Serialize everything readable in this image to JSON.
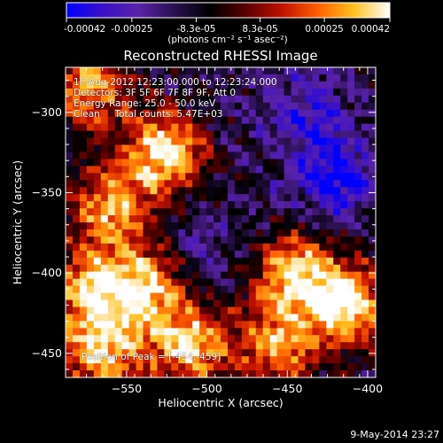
{
  "chart_data": {
    "type": "heatmap",
    "title": "Reconstructed RHESSI Image",
    "xlabel": "Heliocentric X (arcsec)",
    "ylabel": "Heliocentric Y (arcsec)",
    "xlim": [
      -588,
      -395
    ],
    "ylim": [
      -465,
      -272
    ],
    "x_ticks": [
      -550,
      -500,
      -450,
      -400
    ],
    "y_ticks": [
      -300,
      -350,
      -400,
      -450
    ],
    "colorbar": {
      "min": -0.00042,
      "max": 0.00042,
      "tick_values": [
        -0.00042,
        -0.00025,
        -8.3e-05,
        8.3e-05,
        0.00025,
        0.00042
      ],
      "tick_labels": [
        "-0.00042",
        "-0.00025",
        "-8.3e-05",
        "8.3e-05",
        "0.00025",
        "0.00042"
      ],
      "units_label": "(photons cm⁻² s⁻¹ asec⁻²)",
      "colormap": [
        "#0000ff",
        "#3a10c8",
        "#5a22a8",
        "#2a1050",
        "#000000",
        "#5a0000",
        "#c01000",
        "#ff6000",
        "#ffc020",
        "#ffffff"
      ]
    },
    "peak_position": [
      -454,
      -459
    ],
    "bright_regions": [
      {
        "x": -527,
        "y": -325,
        "intensity": 0.00042
      },
      {
        "x": -560,
        "y": -360,
        "intensity": 0.0003
      },
      {
        "x": -540,
        "y": -410,
        "intensity": 0.00035
      },
      {
        "x": -575,
        "y": -410,
        "intensity": 0.0003
      },
      {
        "x": -510,
        "y": -445,
        "intensity": 0.00035
      },
      {
        "x": -565,
        "y": -450,
        "intensity": 0.00035
      },
      {
        "x": -445,
        "y": -400,
        "intensity": 0.00035
      },
      {
        "x": -412,
        "y": -420,
        "intensity": 0.00042
      },
      {
        "x": -455,
        "y": -445,
        "intensity": 0.0003
      },
      {
        "x": -575,
        "y": -285,
        "intensity": 0.0003
      }
    ],
    "dark_regions": [
      {
        "x": -420,
        "y": -340,
        "intensity": -0.00042
      },
      {
        "x": -440,
        "y": -300,
        "intensity": -0.0003
      },
      {
        "x": -500,
        "y": -380,
        "intensity": -0.0002
      }
    ]
  },
  "annotation": {
    "time_range": "10-Aug-2012 12:23:00.000 to 12:23:24.000",
    "detectors": "Detectors: 3F 5F 6F 7F 8F 9F, Att 0",
    "energy": "Energy Range: 25.0 - 50.0 keV",
    "method": "Clean     Total counts: 5.47E+03",
    "peak": "Position of Peak = [-454,-459]"
  },
  "footer_date": "9-May-2014 23:27"
}
